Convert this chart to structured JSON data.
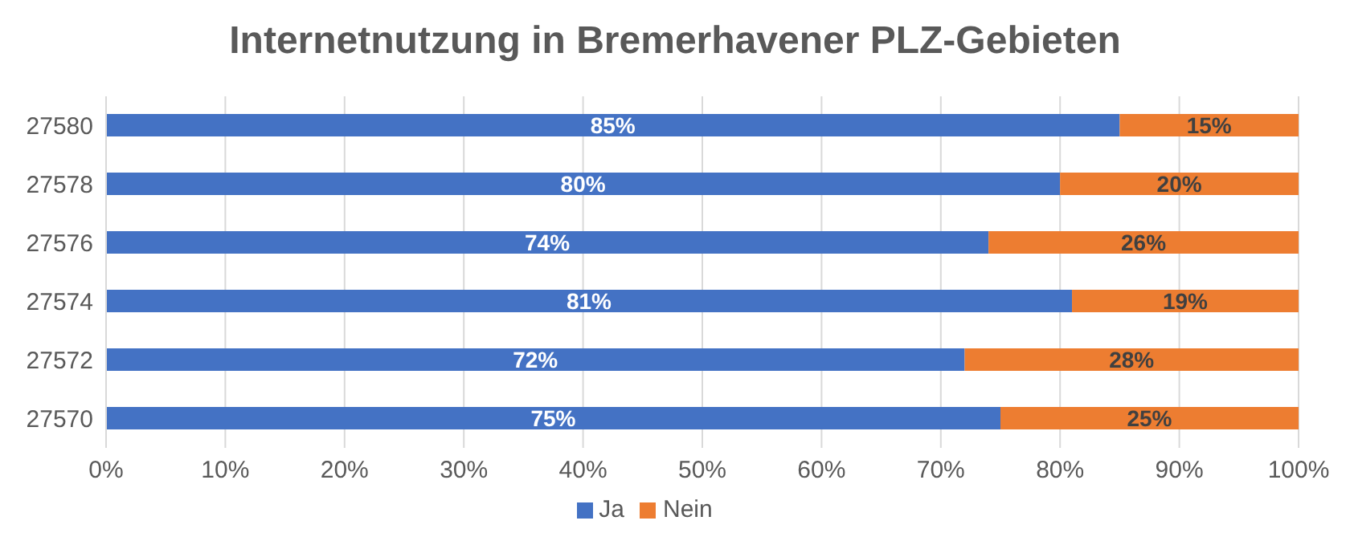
{
  "chart_data": {
    "type": "bar",
    "orientation": "horizontal",
    "stacked": true,
    "title": "Internetnutzung in Bremerhavener PLZ-Gebieten",
    "categories": [
      "27580",
      "27578",
      "27576",
      "27574",
      "27572",
      "27570"
    ],
    "series": [
      {
        "name": "Ja",
        "color": "#4472c4",
        "values": [
          85,
          80,
          74,
          81,
          72,
          75
        ],
        "value_labels": [
          "85%",
          "80%",
          "74%",
          "81%",
          "72%",
          "75%"
        ]
      },
      {
        "name": "Nein",
        "color": "#ed7d31",
        "values": [
          15,
          20,
          26,
          19,
          28,
          25
        ],
        "value_labels": [
          "15%",
          "20%",
          "26%",
          "19%",
          "28%",
          "25%"
        ]
      }
    ],
    "xlim": [
      0,
      100
    ],
    "xticks": [
      {
        "value": 0,
        "label": "0%"
      },
      {
        "value": 10,
        "label": "10%"
      },
      {
        "value": 20,
        "label": "20%"
      },
      {
        "value": 30,
        "label": "30%"
      },
      {
        "value": 40,
        "label": "40%"
      },
      {
        "value": 50,
        "label": "50%"
      },
      {
        "value": 60,
        "label": "60%"
      },
      {
        "value": 70,
        "label": "70%"
      },
      {
        "value": 80,
        "label": "80%"
      },
      {
        "value": 90,
        "label": "90%"
      },
      {
        "value": 100,
        "label": "100%"
      }
    ],
    "grid": "x",
    "legend": "bottom"
  }
}
